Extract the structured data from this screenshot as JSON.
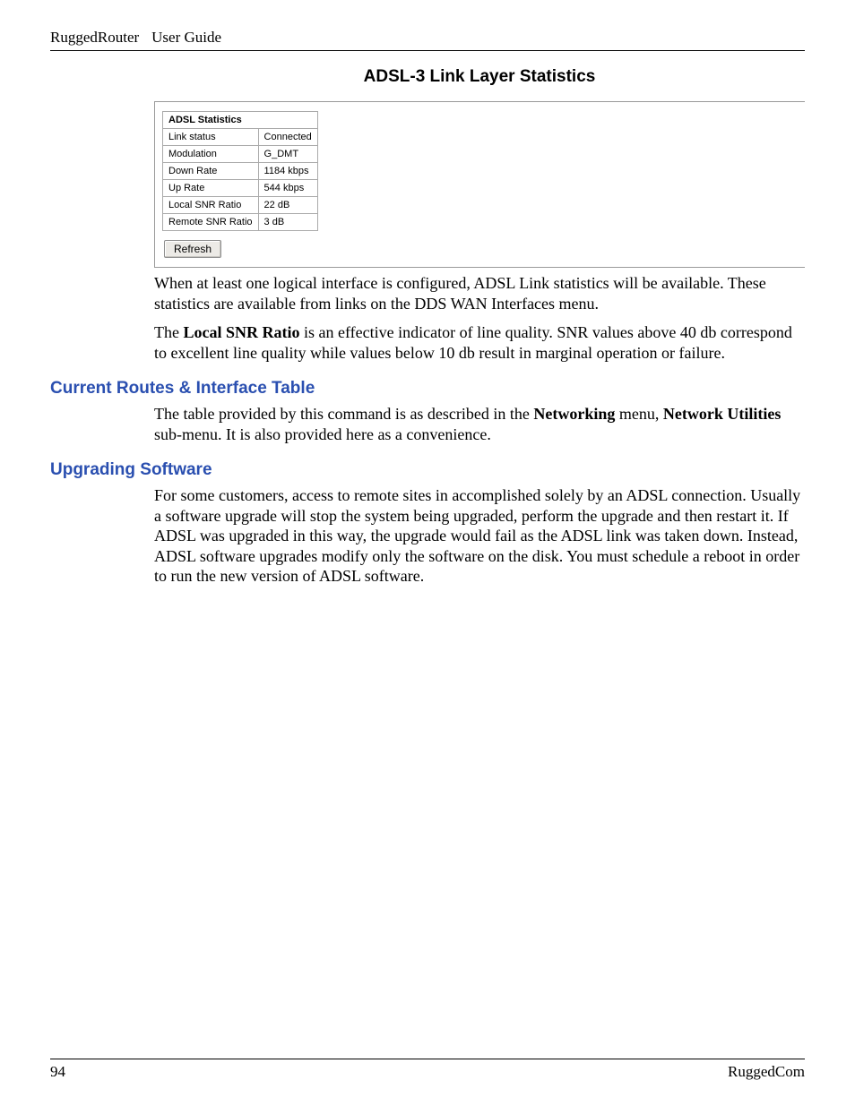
{
  "header": {
    "product": "RuggedRouter",
    "doc": "User Guide"
  },
  "ui": {
    "title": "ADSL-3 Link Layer Statistics",
    "table_caption": "ADSL Statistics",
    "rows": [
      {
        "label": "Link status",
        "value": "Connected"
      },
      {
        "label": "Modulation",
        "value": "G_DMT"
      },
      {
        "label": "Down Rate",
        "value": "1184 kbps"
      },
      {
        "label": "Up Rate",
        "value": "544 kbps"
      },
      {
        "label": "Local SNR Ratio",
        "value": "22 dB"
      },
      {
        "label": "Remote SNR Ratio",
        "value": "3 dB"
      }
    ],
    "refresh_label": "Refresh"
  },
  "body": {
    "p1": "When at least one logical interface is configured, ADSL Link statistics will be available.  These statistics are available from links on the DDS WAN Interfaces menu.",
    "p2a": "The ",
    "p2b_bold": "Local SNR Ratio",
    "p2c": " is an effective indicator of line quality.  SNR values above 40 db correspond to excellent line quality while values below 10 db result in marginal operation or failure."
  },
  "section1": {
    "heading": "Current Routes & Interface Table",
    "p1a": "The table provided by this command is as described in the ",
    "p1b_bold": "Networking",
    "p1c": " menu, ",
    "p1d_bold": "Network Utilities",
    "p1e": " sub-menu.  It is also provided here as a convenience."
  },
  "section2": {
    "heading": "Upgrading Software",
    "p1": "For some customers, access to remote sites in accomplished solely by an ADSL connection.  Usually a software upgrade will stop the system being upgraded, perform the upgrade and then restart it.  If ADSL was upgraded in this way, the upgrade would fail as the ADSL link was taken down.  Instead, ADSL software upgrades modify only the software on the disk. You must schedule a reboot in order to run the new version of ADSL software."
  },
  "footer": {
    "page_number": "94",
    "company": "RuggedCom"
  },
  "colors": {
    "heading_blue": "#2a4fb0",
    "border_gray": "#aaaaaa",
    "button_bg": "#eceae6"
  }
}
